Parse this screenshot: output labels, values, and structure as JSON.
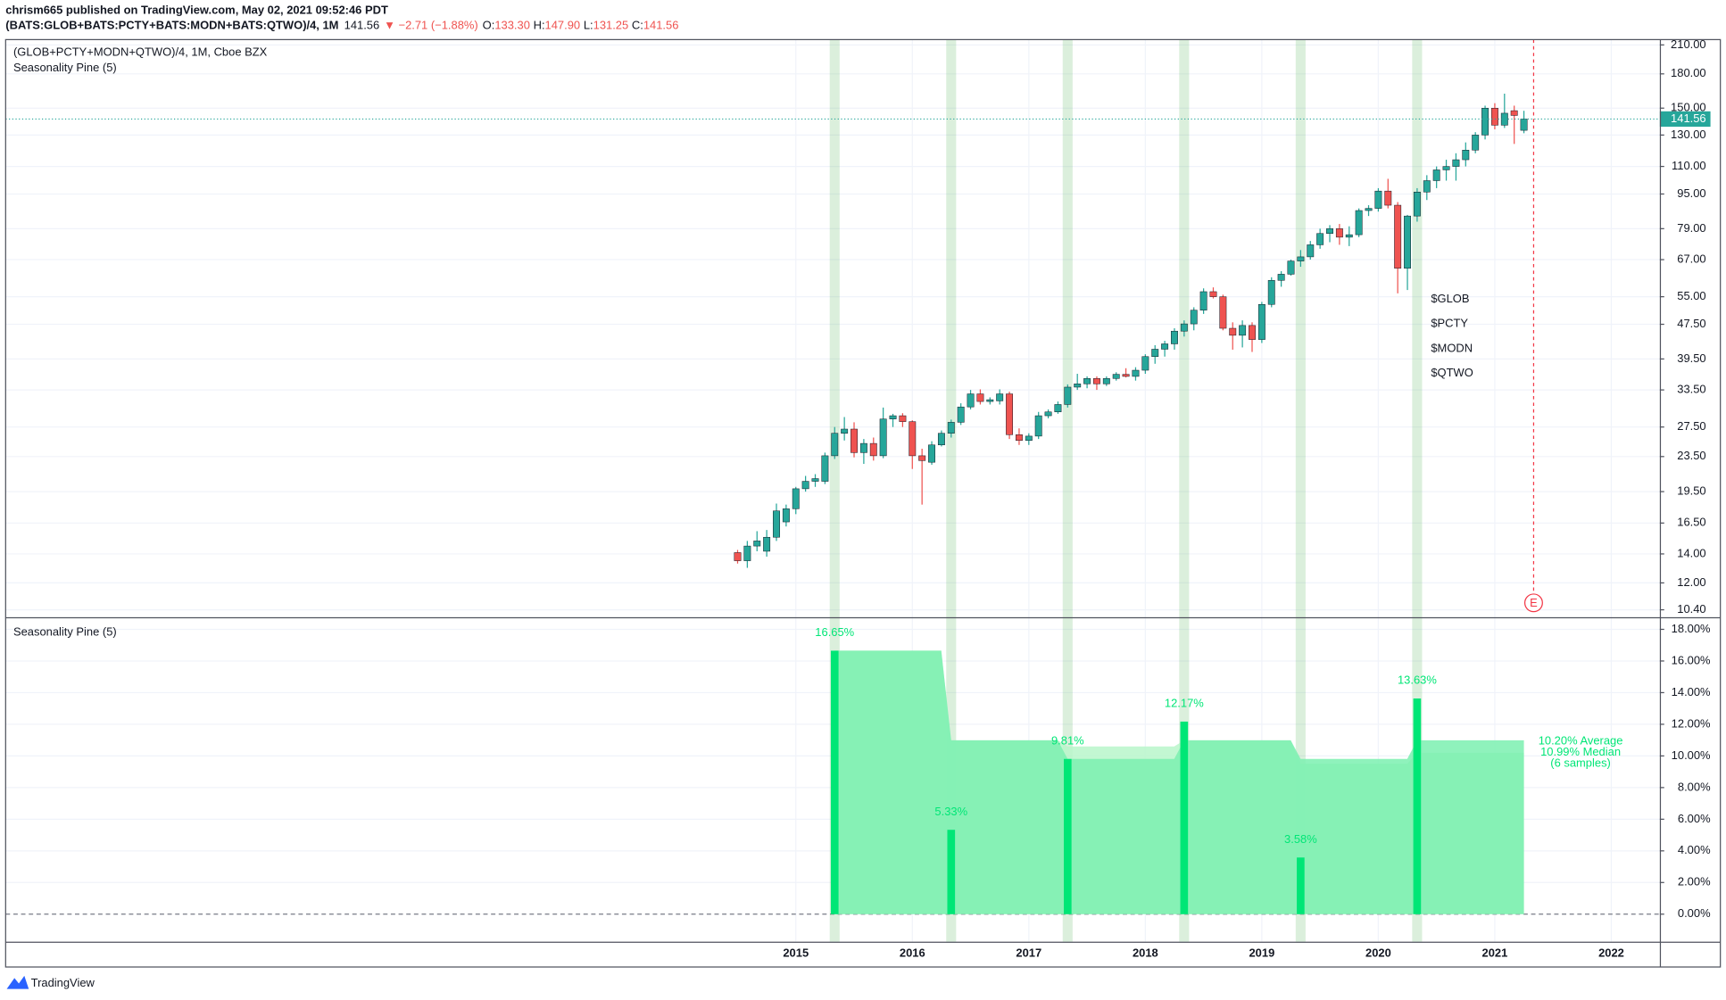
{
  "header": {
    "byline": "chrism665 published on TradingView.com, May 02, 2021 09:52:46 PDT",
    "symbol": "(BATS:GLOB+BATS:PCTY+BATS:MODN+BATS:QTWO)/4, 1M",
    "last": "141.56",
    "change": "▼ −2.71 (−1.88%)",
    "ohlc": [
      {
        "key": "O:",
        "value": "133.30"
      },
      {
        "key": "H:",
        "value": "147.90"
      },
      {
        "key": "L:",
        "value": "131.25"
      },
      {
        "key": "C:",
        "value": "141.56"
      }
    ]
  },
  "chart_data": [
    {
      "type": "candlestick",
      "title": "(GLOB+PCTY+MODN+QTWO)/4, 1M, Cboe BZX",
      "subtitle": "Seasonality Pine (5)",
      "log_scale": true,
      "grid": true,
      "up_color": "#26a69a",
      "down_color": "#ef5350",
      "x": [
        0,
        1,
        2,
        3,
        4,
        5,
        6,
        7,
        8,
        9,
        10,
        11,
        12,
        13,
        14,
        15,
        16,
        17,
        18,
        19,
        20,
        21,
        22,
        23,
        24,
        25,
        26,
        27,
        28,
        29,
        30,
        31,
        32,
        33,
        34,
        35,
        36,
        37,
        38,
        39,
        40,
        41,
        42,
        43,
        44,
        45,
        46,
        47,
        48,
        49,
        50,
        51,
        52,
        53,
        54,
        55,
        56,
        57,
        58,
        59,
        60,
        61,
        62,
        63,
        64,
        65,
        66,
        67,
        68,
        69,
        70,
        71,
        72,
        73,
        74,
        75,
        76,
        77,
        78,
        79,
        80,
        81
      ],
      "open": [
        14.1,
        13.5,
        14.6,
        14.2,
        15.3,
        16.6,
        17.8,
        19.8,
        20.6,
        20.6,
        23.6,
        26.6,
        27.2,
        24.0,
        25.2,
        23.6,
        28.7,
        29.2,
        28.3,
        23.6,
        22.8,
        25.0,
        26.6,
        28.2,
        30.6,
        32.8,
        31.5,
        31.6,
        32.8,
        26.4,
        25.6,
        26.2,
        29.2,
        29.8,
        31.0,
        34.0,
        34.6,
        35.6,
        34.6,
        35.6,
        36.4,
        36.0,
        37.2,
        40.0,
        41.6,
        42.8,
        45.8,
        47.6,
        51.2,
        56.5,
        55.0,
        46.5,
        44.8,
        47.2,
        43.8,
        52.8,
        60.0,
        62.0,
        66.5,
        68.0,
        72.5,
        77.0,
        79.0,
        75.5,
        76.5,
        87.0,
        88.0,
        96.5,
        89.5,
        64.0,
        84.5,
        96,
        102,
        108,
        110,
        114,
        120,
        130,
        150,
        137,
        148,
        133.3
      ],
      "high": [
        14.3,
        15.0,
        15.8,
        15.9,
        18.3,
        18.2,
        20.0,
        21.2,
        21.4,
        24.0,
        27.5,
        29.0,
        28.2,
        25.8,
        26.0,
        30.5,
        29.5,
        29.6,
        28.5,
        24.5,
        25.5,
        27.0,
        28.6,
        31.2,
        33.5,
        33.6,
        32.2,
        33.6,
        33.2,
        27.3,
        26.6,
        29.8,
        30.2,
        31.5,
        34.5,
        36.5,
        36.0,
        36.0,
        36.0,
        36.8,
        37.6,
        37.8,
        40.5,
        42.5,
        43.5,
        46.5,
        48.5,
        52.0,
        57.5,
        57.8,
        55.6,
        48.0,
        48.5,
        48.0,
        53.5,
        61.0,
        63.0,
        67.0,
        70.5,
        74.0,
        79.0,
        80.5,
        81.0,
        80.0,
        88.0,
        89.5,
        98,
        103,
        91,
        85,
        98,
        105,
        110,
        114,
        118,
        125,
        132,
        152,
        154,
        162,
        152,
        147.9
      ],
      "low": [
        13.3,
        13.0,
        14.2,
        13.8,
        15.0,
        16.2,
        17.3,
        19.5,
        20.0,
        20.3,
        23.2,
        25.6,
        23.4,
        22.6,
        23.0,
        23.3,
        27.5,
        27.5,
        22.0,
        18.2,
        22.5,
        24.8,
        26.0,
        27.8,
        30.2,
        31.0,
        31.0,
        31.0,
        25.8,
        25.0,
        25.0,
        25.8,
        28.8,
        29.5,
        30.5,
        33.5,
        33.8,
        33.5,
        34.2,
        35.2,
        35.8,
        35.2,
        36.5,
        38.5,
        40.0,
        41.5,
        44.5,
        46.0,
        50.2,
        54.5,
        46.0,
        41.5,
        42.0,
        41.0,
        43.0,
        52.0,
        58.0,
        61.5,
        64.5,
        67.0,
        71.0,
        73.5,
        72.5,
        72.0,
        75.5,
        84.5,
        86.5,
        88,
        56,
        57,
        82,
        92,
        98,
        102,
        102,
        110,
        118,
        127,
        134,
        135,
        124,
        131.25
      ],
      "close": [
        13.5,
        14.6,
        15.0,
        15.3,
        17.6,
        17.8,
        19.8,
        20.6,
        20.9,
        23.6,
        26.6,
        27.2,
        24.0,
        25.2,
        23.6,
        28.7,
        29.2,
        28.3,
        23.6,
        23.0,
        25.0,
        26.6,
        28.2,
        30.6,
        32.8,
        31.5,
        31.8,
        32.8,
        26.4,
        25.6,
        26.2,
        29.2,
        29.8,
        31.0,
        34.0,
        34.6,
        35.6,
        34.6,
        35.6,
        36.4,
        36.0,
        37.2,
        40.0,
        41.6,
        42.8,
        45.8,
        47.6,
        51.2,
        56.5,
        55.0,
        46.5,
        44.8,
        47.2,
        43.8,
        52.8,
        60.0,
        62.0,
        66.5,
        68.0,
        72.5,
        77.0,
        79.0,
        75.5,
        76.5,
        87.0,
        88.0,
        96.5,
        89.5,
        64.0,
        84.5,
        96,
        102,
        108,
        110,
        114,
        120,
        130,
        150,
        137,
        146,
        144.27,
        141.56
      ],
      "xlim": [
        -75.4,
        95
      ],
      "xticks": [
        {
          "value": 6,
          "label": "2015"
        },
        {
          "value": 18,
          "label": "2016"
        },
        {
          "value": 30,
          "label": "2017"
        },
        {
          "value": 42,
          "label": "2018"
        },
        {
          "value": 54,
          "label": "2019"
        },
        {
          "value": 66,
          "label": "2020"
        },
        {
          "value": 78,
          "label": "2021"
        },
        {
          "value": 90,
          "label": "2022"
        }
      ],
      "ylim": [
        10,
        216
      ],
      "yticks": [
        {
          "value": 210,
          "label": "210.00"
        },
        {
          "value": 180,
          "label": "180.00"
        },
        {
          "value": 150,
          "label": "150.00"
        },
        {
          "value": 130,
          "label": "130.00"
        },
        {
          "value": 110,
          "label": "110.00"
        },
        {
          "value": 95,
          "label": "95.00"
        },
        {
          "value": 79,
          "label": "79.00"
        },
        {
          "value": 67,
          "label": "67.00"
        },
        {
          "value": 55,
          "label": "55.00"
        },
        {
          "value": 47.5,
          "label": "47.50"
        },
        {
          "value": 39.5,
          "label": "39.50"
        },
        {
          "value": 33.5,
          "label": "33.50"
        },
        {
          "value": 27.5,
          "label": "27.50"
        },
        {
          "value": 23.5,
          "label": "23.50"
        },
        {
          "value": 19.5,
          "label": "19.50"
        },
        {
          "value": 16.5,
          "label": "16.50"
        },
        {
          "value": 14,
          "label": "14.00"
        },
        {
          "value": 12,
          "label": "12.00"
        },
        {
          "value": 10.4,
          "label": "10.40"
        }
      ],
      "annotation_lines": [
        "$GLOB",
        "$PCTY",
        "$MODN",
        "$QTWO"
      ],
      "events": [
        {
          "x": 82,
          "label": "E",
          "color": "#f23645"
        }
      ]
    },
    {
      "type": "bar",
      "title": "Seasonality Pine (5)",
      "grid": true,
      "color": "#00e676",
      "band_color": "#4caf50",
      "x": [
        10,
        22,
        34,
        46,
        58,
        70
      ],
      "values": [
        16.65,
        5.33,
        9.81,
        12.17,
        3.58,
        13.63
      ],
      "value_labels": [
        "16.65%",
        "5.33%",
        "9.81%",
        "12.17%",
        "3.58%",
        "13.63%"
      ],
      "series": [
        {
          "color": "#b9f6ca",
          "values": [
            16.65,
            10.99,
            10.6,
            10.99,
            9.51,
            10.2
          ]
        },
        {
          "color": "#7bf0b0",
          "values": [
            16.65,
            10.99,
            9.81,
            10.99,
            9.81,
            10.99
          ]
        }
      ],
      "annotations": [
        "10.20% Average",
        "10.99% Median",
        "(6 samples)"
      ],
      "ylim": [
        -1.74,
        18.7
      ],
      "yticks": [
        {
          "value": 18,
          "label": "18.00%"
        },
        {
          "value": 16,
          "label": "16.00%"
        },
        {
          "value": 14,
          "label": "14.00%"
        },
        {
          "value": 12,
          "label": "12.00%"
        },
        {
          "value": 10,
          "label": "10.00%"
        },
        {
          "value": 8,
          "label": "8.00%"
        },
        {
          "value": 6,
          "label": "6.00%"
        },
        {
          "value": 4,
          "label": "4.00%"
        },
        {
          "value": 2,
          "label": "2.00%"
        },
        {
          "value": 0,
          "label": "0.00%"
        }
      ]
    }
  ],
  "footer": {
    "brand": "TradingView"
  }
}
